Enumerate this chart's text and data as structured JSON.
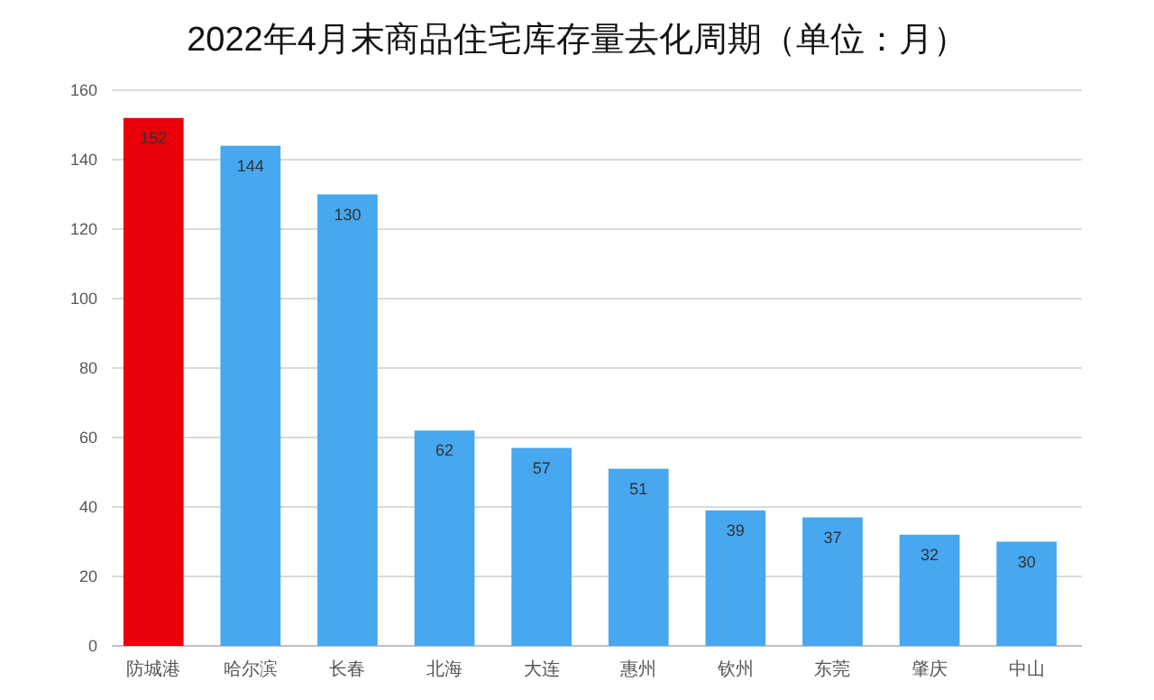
{
  "chart_data": {
    "type": "bar",
    "title": "2022年4月末商品住宅库存量去化周期（单位：月）",
    "categories": [
      "防城港",
      "哈尔滨",
      "长春",
      "北海",
      "大连",
      "惠州",
      "钦州",
      "东莞",
      "肇庆",
      "中山"
    ],
    "values": [
      152,
      144,
      130,
      62,
      57,
      51,
      39,
      37,
      32,
      30
    ],
    "colors": [
      "#e8000b",
      "#47a7ef",
      "#47a7ef",
      "#47a7ef",
      "#47a7ef",
      "#47a7ef",
      "#47a7ef",
      "#47a7ef",
      "#47a7ef",
      "#47a7ef"
    ],
    "ylim": [
      0,
      160
    ],
    "yticks": [
      0,
      20,
      40,
      60,
      80,
      100,
      120,
      140,
      160
    ],
    "grid": "y",
    "data_labels": true
  }
}
